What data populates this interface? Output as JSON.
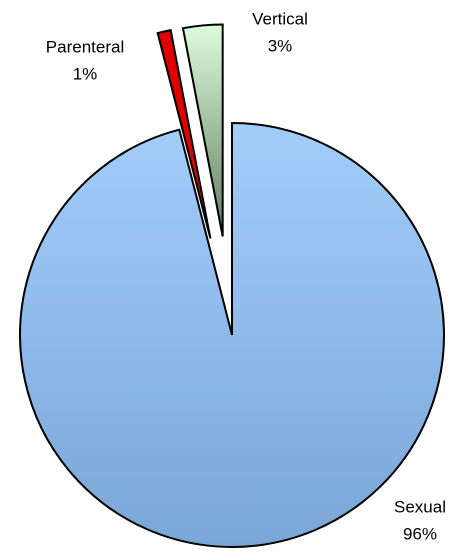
{
  "chart_data": {
    "type": "pie",
    "categories": [
      "Sexual",
      "Parenteral",
      "Vertical"
    ],
    "values": [
      96,
      1,
      3
    ],
    "value_labels": [
      "96%",
      "1%",
      "3%"
    ],
    "colors": [
      "#8fbcef",
      "#e00000",
      "#c8f0c8"
    ],
    "exploded": [
      false,
      true,
      true
    ]
  }
}
